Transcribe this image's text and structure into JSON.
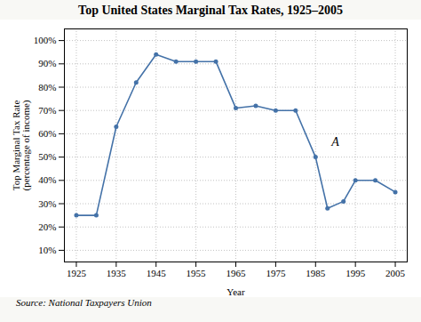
{
  "chart_data": {
    "type": "line",
    "title": "Top United States Marginal Tax Rates, 1925–2005",
    "xlabel": "Year",
    "ylabel": "Top Marginal Tax Rate\n(percentage of income)",
    "source": "Source: National Taxpayers Union",
    "x": [
      1925,
      1930,
      1935,
      1940,
      1945,
      1950,
      1955,
      1960,
      1965,
      1970,
      1975,
      1980,
      1985,
      1988,
      1992,
      1995,
      2000,
      2005
    ],
    "values": [
      25,
      25,
      63,
      82,
      94,
      91,
      91,
      91,
      71,
      72,
      70,
      70,
      50,
      28,
      31,
      40,
      40,
      35
    ],
    "color": "#4472a8",
    "marker": "circle",
    "xlim": [
      1922,
      2008
    ],
    "xticks": [
      1925,
      1935,
      1945,
      1955,
      1965,
      1975,
      1985,
      1995,
      2005
    ],
    "ylim": [
      5,
      105
    ],
    "yticks": [
      {
        "value": 10,
        "label": "10%"
      },
      {
        "value": 20,
        "label": "20%"
      },
      {
        "value": 30,
        "label": "30%"
      },
      {
        "value": 40,
        "label": "40%"
      },
      {
        "value": 50,
        "label": "50%"
      },
      {
        "value": 60,
        "label": "60%"
      },
      {
        "value": 70,
        "label": "70%"
      },
      {
        "value": 80,
        "label": "80%"
      },
      {
        "value": 90,
        "label": "90%"
      },
      {
        "value": 100,
        "label": "100%"
      }
    ],
    "grid": true,
    "annotations": [
      {
        "text": "A",
        "x": 1989,
        "y": 55
      }
    ]
  }
}
